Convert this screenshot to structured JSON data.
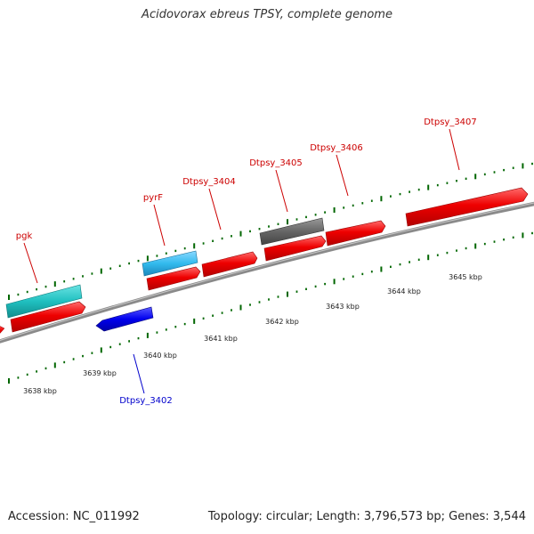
{
  "title": "Acidovorax ebreus TPSY, complete genome",
  "footer": {
    "accession": "Accession: NC_011992",
    "stats": "Topology: circular; Length: 3,796,573 bp; Genes: 3,544"
  },
  "scale": {
    "labels": [
      "3638 kbp",
      "3639 kbp",
      "3640 kbp",
      "3641 kbp",
      "3642 kbp",
      "3643 kbp",
      "3644 kbp",
      "3645 kbp"
    ]
  },
  "genes": [
    {
      "name": "pgk",
      "label_color": "#cc0000",
      "fill": "#20c0c0",
      "strand": "forward"
    },
    {
      "name": "pyrF",
      "label_color": "#cc0000",
      "fill": "#33bbee",
      "strand": "forward"
    },
    {
      "name": "Dtpsy_3404",
      "label_color": "#cc0000",
      "fill": "#ee0000",
      "strand": "forward"
    },
    {
      "name": "Dtpsy_3405",
      "label_color": "#cc0000",
      "fill": "#666666",
      "strand": "forward"
    },
    {
      "name": "Dtpsy_3406",
      "label_color": "#cc0000",
      "fill": "#ee0000",
      "strand": "forward"
    },
    {
      "name": "Dtpsy_3407",
      "label_color": "#cc0000",
      "fill": "#ee0000",
      "strand": "forward"
    },
    {
      "name": "Dtpsy_3402",
      "label_color": "#0000cc",
      "fill": "#0000ee",
      "strand": "reverse"
    }
  ],
  "colors": {
    "backbone": "#888888",
    "ticks": "#006600",
    "cds": "#ee0000"
  }
}
